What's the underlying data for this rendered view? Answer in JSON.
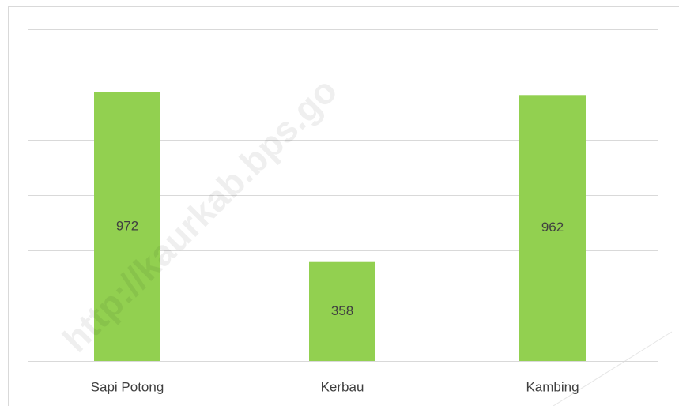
{
  "chart_data": {
    "type": "bar",
    "categories": [
      "Sapi Potong",
      "Kerbau",
      "Kambing"
    ],
    "values": [
      972,
      358,
      962
    ],
    "color": "#92d050",
    "ylim": [
      0,
      1200
    ],
    "yticks": [
      0,
      200,
      400,
      600,
      800,
      1000,
      1200
    ],
    "grid": true
  },
  "watermark": "http://kaurkab.bps.go"
}
